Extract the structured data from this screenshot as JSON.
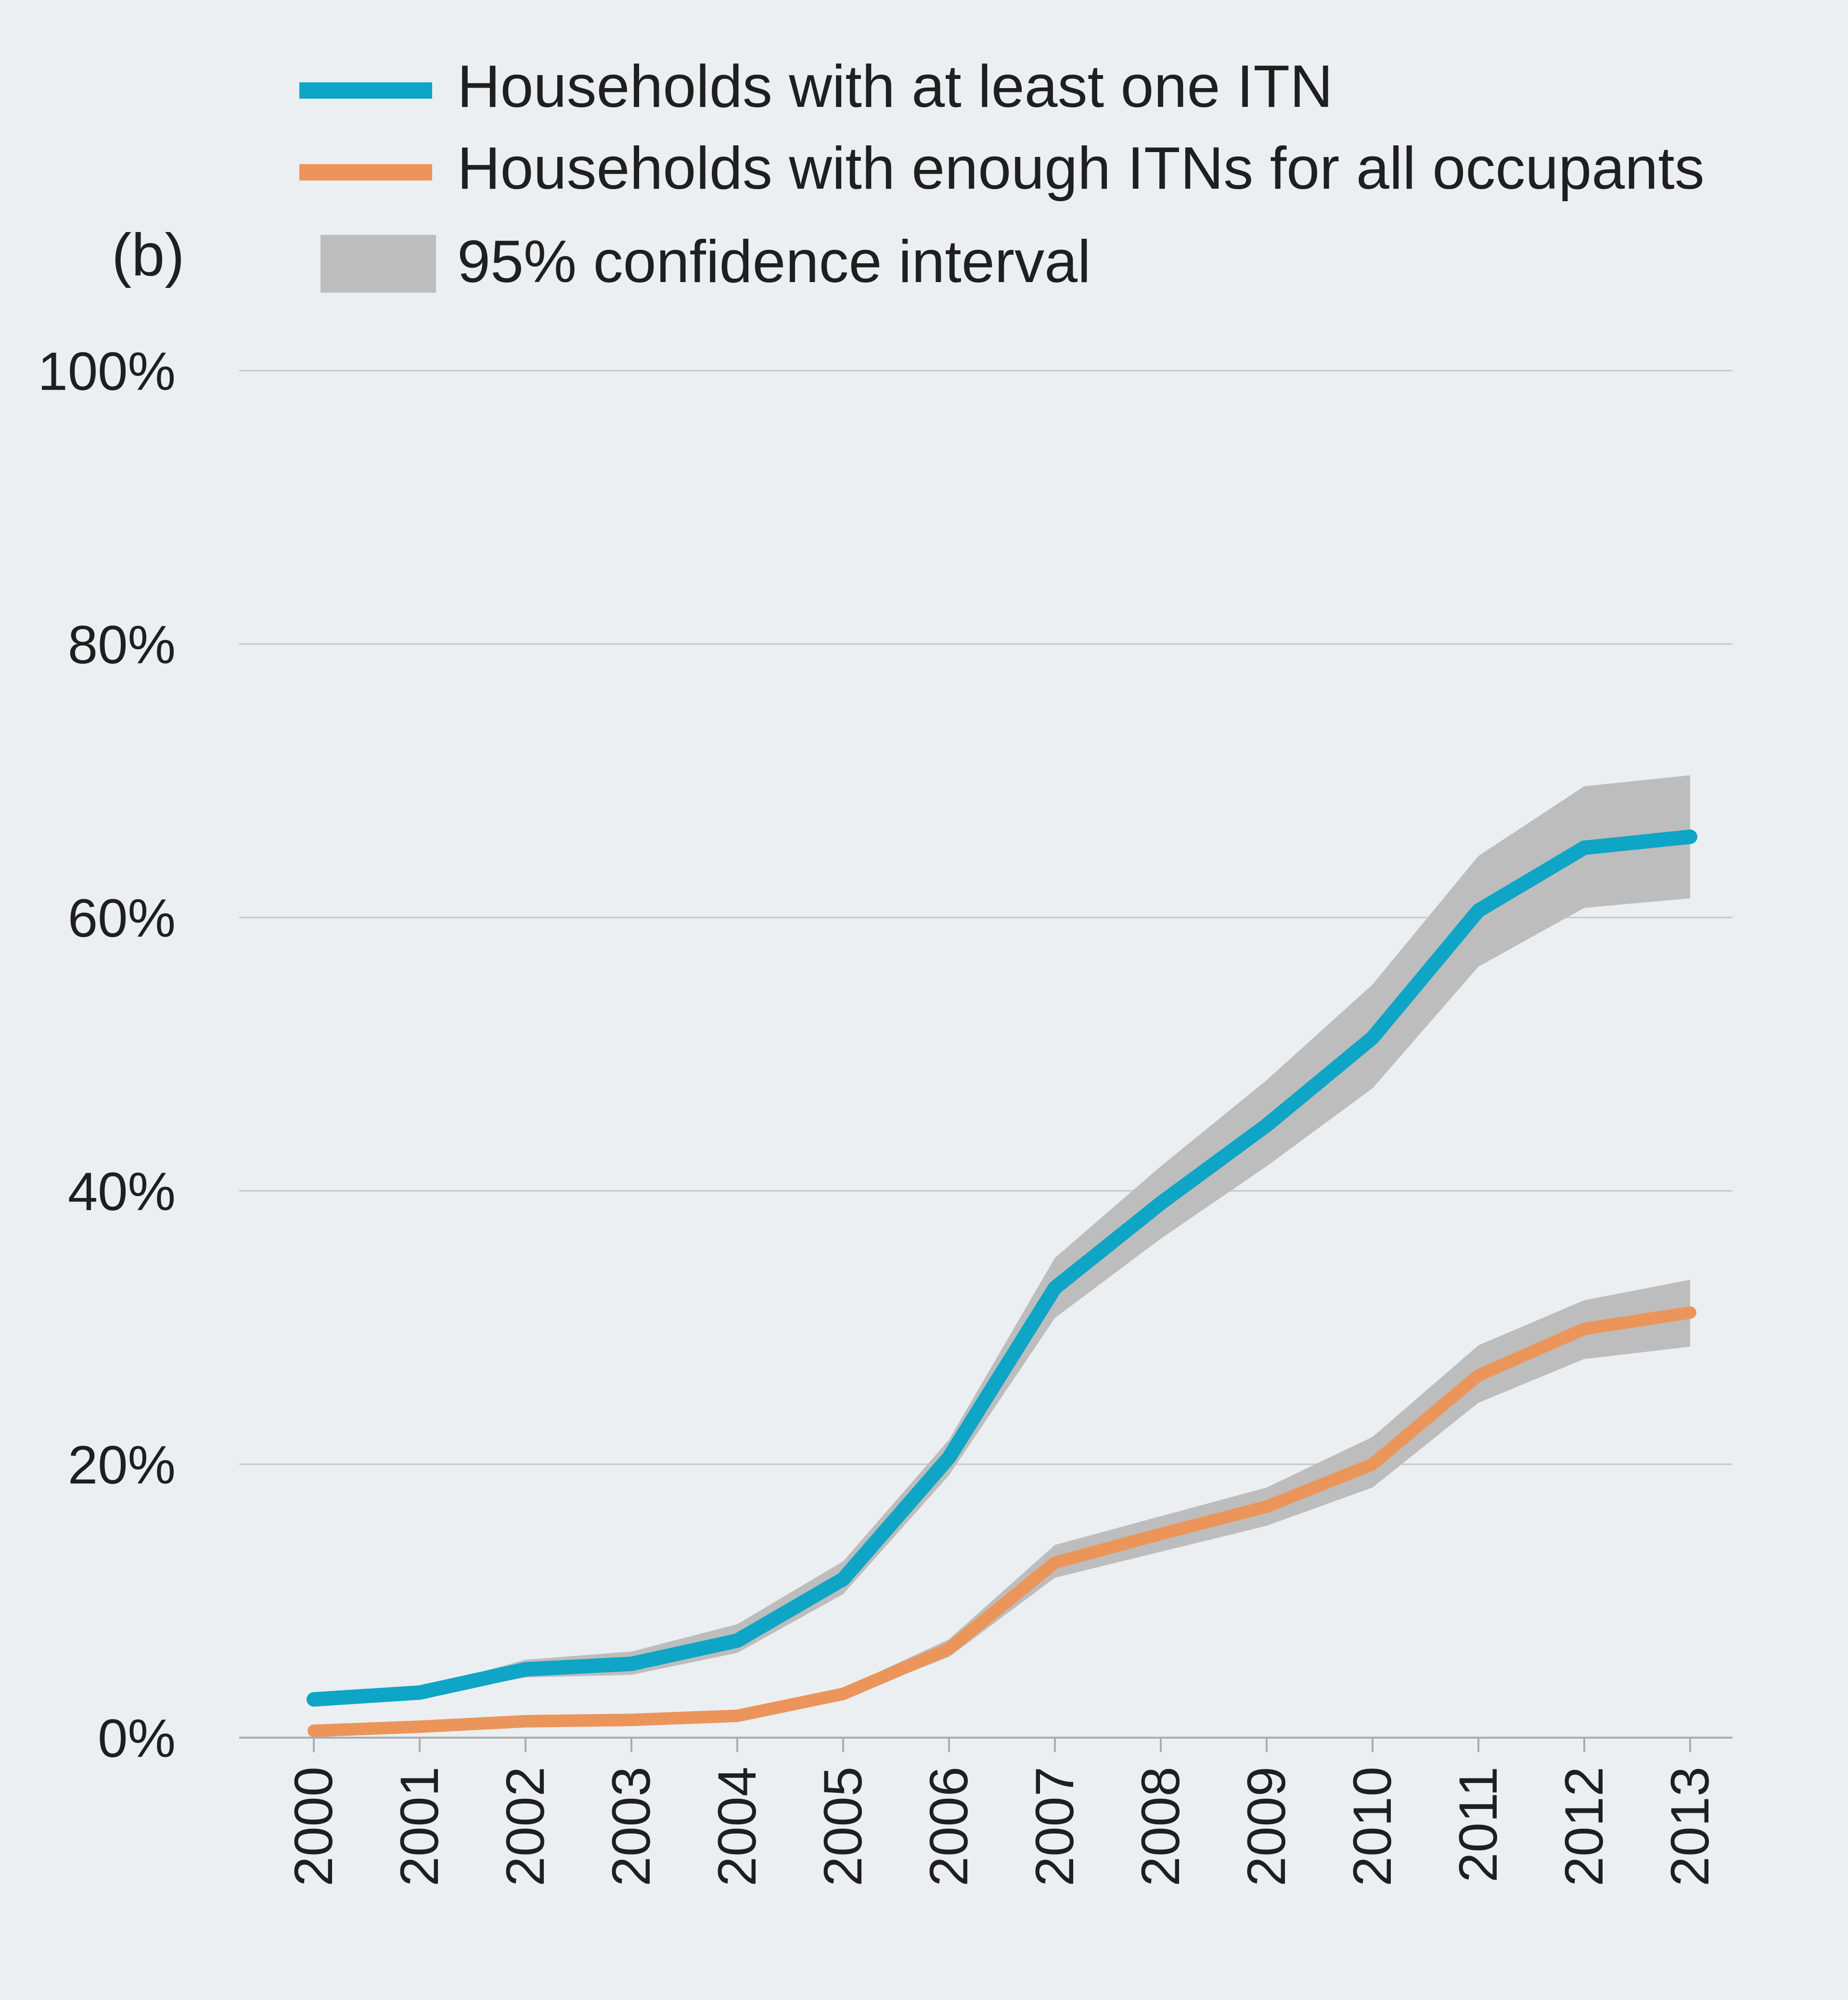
{
  "colors": {
    "background": "#ebeff2",
    "series_one": "#0ea5c6",
    "series_enough": "#eb955b",
    "confidence": "#bdbdbd"
  },
  "chart_data": {
    "type": "line",
    "panel_label": "(b)",
    "title": "",
    "xlabel": "",
    "ylabel": "",
    "x": [
      2000,
      2001,
      2002,
      2003,
      2004,
      2005,
      2006,
      2007,
      2008,
      2009,
      2010,
      2011,
      2012,
      2013
    ],
    "x_labels": [
      "2000",
      "2001",
      "2002",
      "2003",
      "2004",
      "2005",
      "2006",
      "2007",
      "2008",
      "2009",
      "2010",
      "2011",
      "2012",
      "2013"
    ],
    "ylim": [
      0,
      100
    ],
    "y_ticks": [
      0,
      20,
      40,
      60,
      80,
      100
    ],
    "y_tick_labels": [
      "0%",
      "20%",
      "40%",
      "60%",
      "80%",
      "100%"
    ],
    "grid": true,
    "legend_placement": "top",
    "legend": {
      "series_one": "Households with at least one ITN",
      "series_enough": "Households with enough ITNs for all occupants",
      "confidence": "95% confidence interval"
    },
    "series": [
      {
        "name": "Households with at least one ITN",
        "color": "#0ea5c6",
        "values": [
          2.8,
          3.3,
          5.0,
          5.4,
          7.1,
          11.6,
          20.5,
          32.9,
          39.1,
          44.8,
          51.2,
          60.5,
          65.1,
          65.9
        ],
        "ci_upper": [
          3.0,
          3.6,
          5.7,
          6.3,
          8.3,
          12.9,
          21.8,
          35.1,
          41.8,
          48.1,
          55.1,
          64.5,
          69.6,
          70.4
        ],
        "ci_lower": [
          2.6,
          3.0,
          4.4,
          4.6,
          6.2,
          10.5,
          19.2,
          30.7,
          36.5,
          41.8,
          47.5,
          56.4,
          60.7,
          61.4
        ]
      },
      {
        "name": "Households with enough ITNs for all occupants",
        "color": "#eb955b",
        "values": [
          0.5,
          0.8,
          1.2,
          1.3,
          1.6,
          3.2,
          6.5,
          12.8,
          14.9,
          16.9,
          20.0,
          26.5,
          29.9,
          31.1
        ],
        "ci_upper": [
          0.6,
          0.9,
          1.4,
          1.5,
          1.9,
          3.6,
          7.2,
          14.1,
          16.2,
          18.3,
          22.0,
          28.7,
          32.0,
          33.5
        ],
        "ci_lower": [
          0.4,
          0.7,
          1.0,
          1.1,
          1.4,
          2.9,
          5.9,
          11.7,
          13.6,
          15.5,
          18.3,
          24.5,
          27.7,
          28.6
        ]
      }
    ]
  }
}
